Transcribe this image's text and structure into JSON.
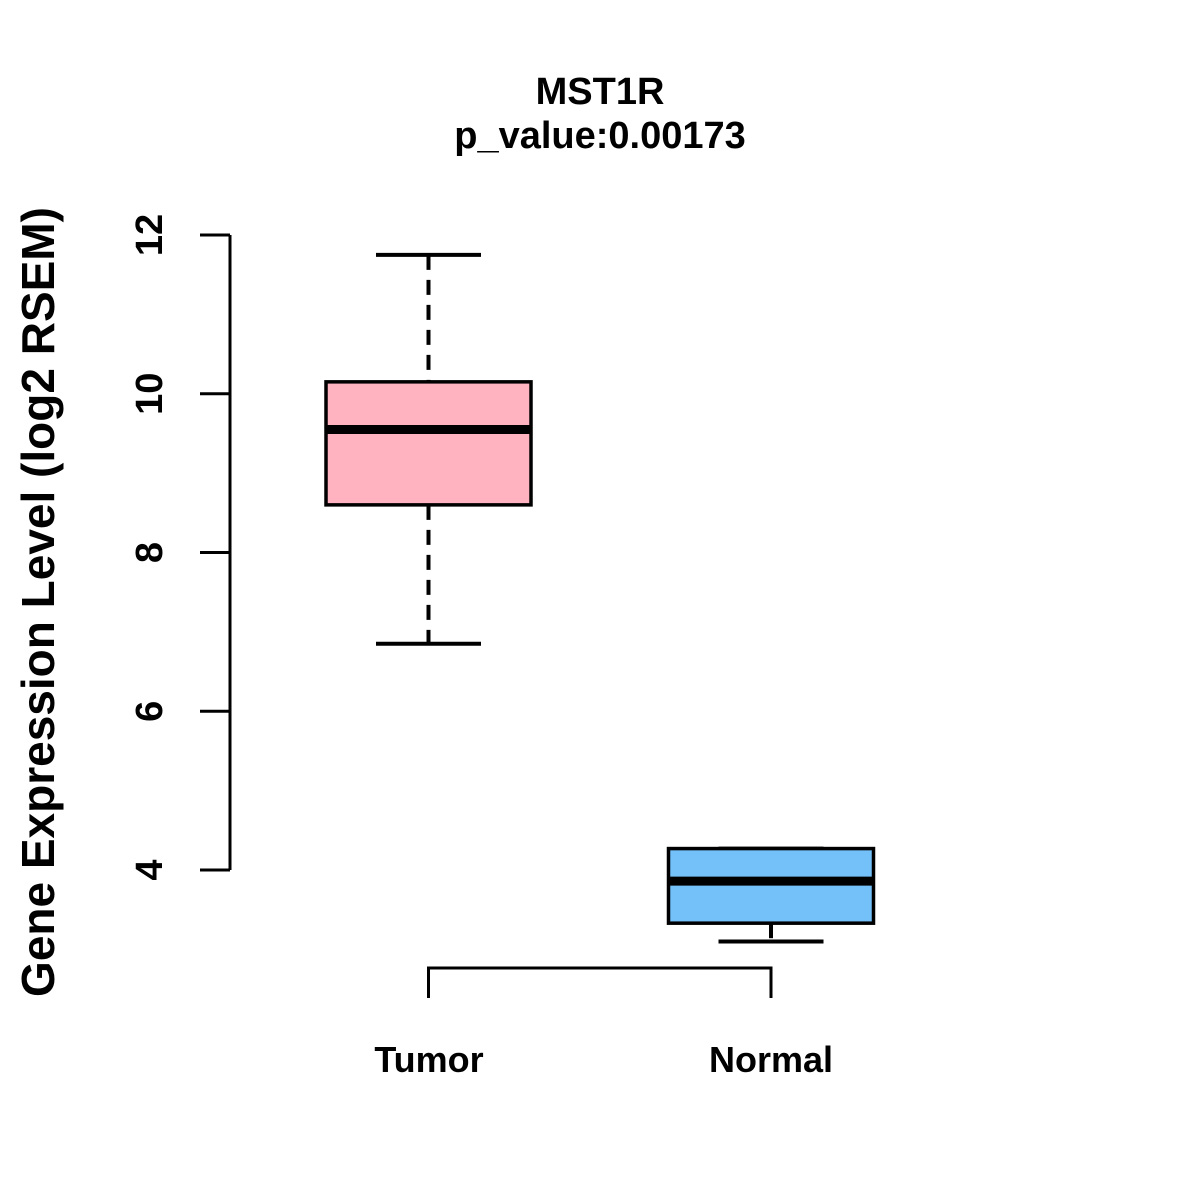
{
  "chart_data": {
    "type": "boxplot",
    "title": "MST1R",
    "subtitle": "p_value:0.00173",
    "ylabel": "Gene Expression Level (log2 RSEM)",
    "xlabel": "",
    "categories": [
      "Tumor",
      "Normal"
    ],
    "ylim": [
      4,
      12
    ],
    "yticks": [
      4,
      6,
      8,
      10,
      12
    ],
    "grid": false,
    "legend": "none",
    "colors": {
      "tumor_fill": "#FFB3C1",
      "normal_fill": "#74C0F8",
      "stroke": "#000000",
      "background": "#FFFFFF"
    },
    "groups": [
      {
        "name": "Tumor",
        "fill_color": "#FFB3C1",
        "whisker_low": 6.85,
        "q1": 8.6,
        "median": 9.55,
        "q3": 10.15,
        "whisker_high": 11.75
      },
      {
        "name": "Normal",
        "fill_color": "#74C0F8",
        "whisker_low": 3.1,
        "q1": 3.33,
        "median": 3.86,
        "q3": 4.27,
        "whisker_high": 4.27
      }
    ]
  }
}
